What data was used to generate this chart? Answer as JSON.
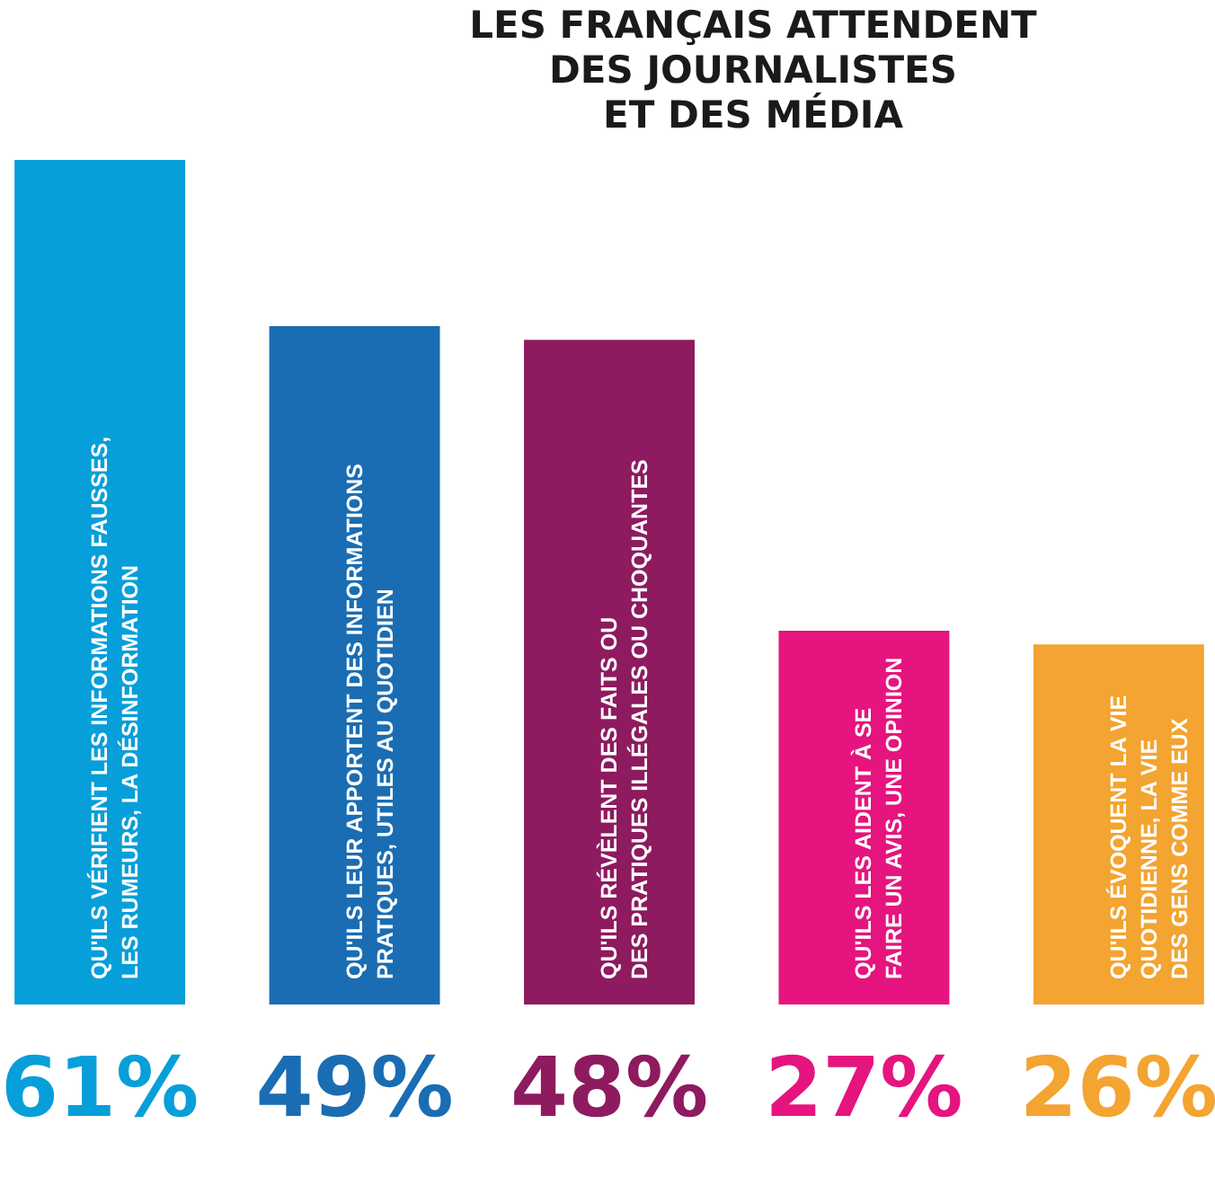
{
  "chart_data": {
    "type": "bar",
    "title": "LES FRANÇAIS ATTENDENT\nDES JOURNALISTES\nET DES MÉDIA",
    "categories": [
      "QU'ILS VÉRIFIENT LES INFORMATIONS FAUSSES,\nLES RUMEURS, LA DÉSINFORMATION",
      "QU'ILS LEUR APPORTENT DES INFORMATIONS\nPRATIQUES, UTILES AU QUOTIDIEN",
      "QU'ILS RÉVÈLENT DES FAITS OU\nDES PRATIQUES ILLÉGALES OU CHOQUANTES",
      "QU'ILS LES AIDENT À SE\nFAIRE UN AVIS, UNE OPINION",
      "QU'ILS ÉVOQUENT LA VIE\nQUOTIDIENNE, LA VIE\nDES GENS COMME EUX"
    ],
    "values": [
      61,
      49,
      48,
      27,
      26
    ],
    "colors": [
      "#079fd9",
      "#1a6db3",
      "#8e1a5f",
      "#e5147e",
      "#f3a431"
    ],
    "value_labels": [
      "61%",
      "49%",
      "48%",
      "27%",
      "26%"
    ]
  }
}
